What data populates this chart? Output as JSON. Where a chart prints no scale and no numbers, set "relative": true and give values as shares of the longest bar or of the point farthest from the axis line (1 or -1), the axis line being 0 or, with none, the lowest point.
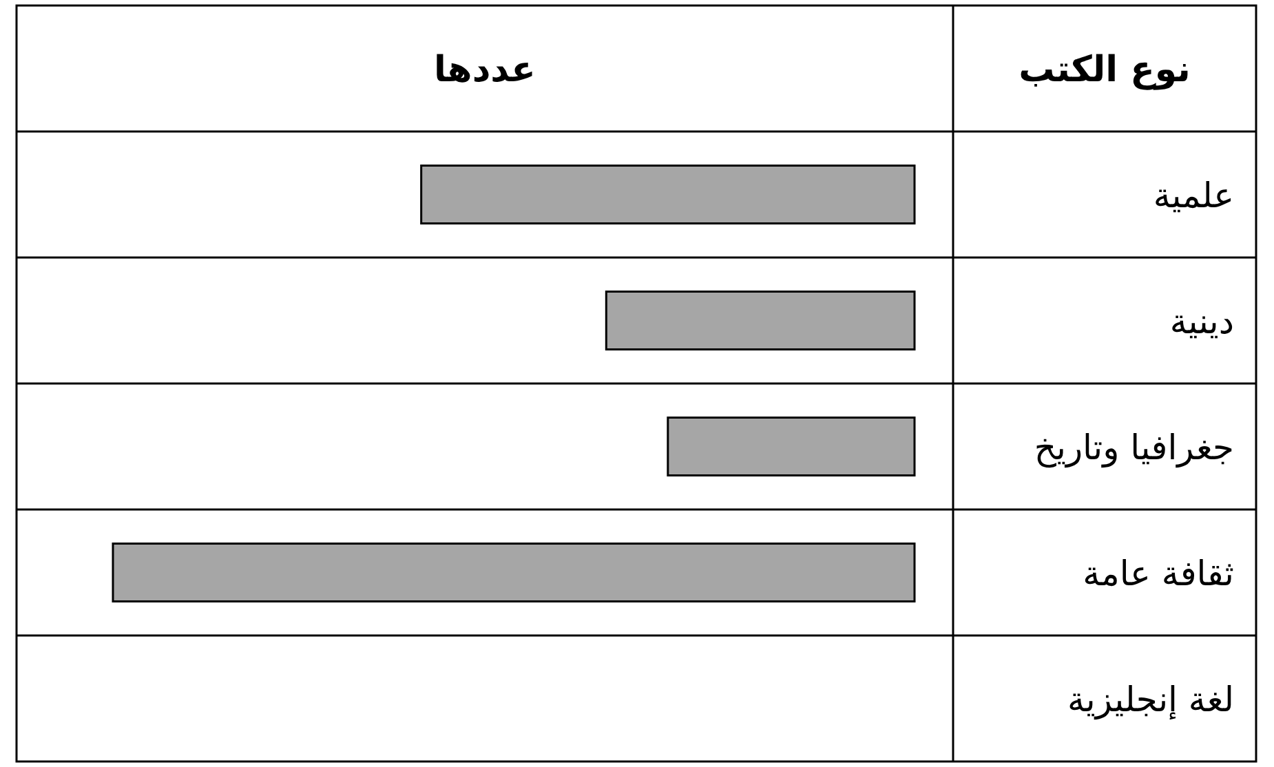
{
  "chart_data": {
    "type": "bar",
    "orientation": "horizontal",
    "relative": true,
    "xlabel": "عددها",
    "ylabel": "نوع الكتب",
    "categories": [
      "علمية",
      "دينية",
      "جغرافيا وتاريخ",
      "ثقافة عامة",
      "لغة إنجليزية"
    ],
    "values": [
      0.6154,
      0.3846,
      0.3077,
      1,
      0
    ],
    "color": "#a6a6a6"
  }
}
